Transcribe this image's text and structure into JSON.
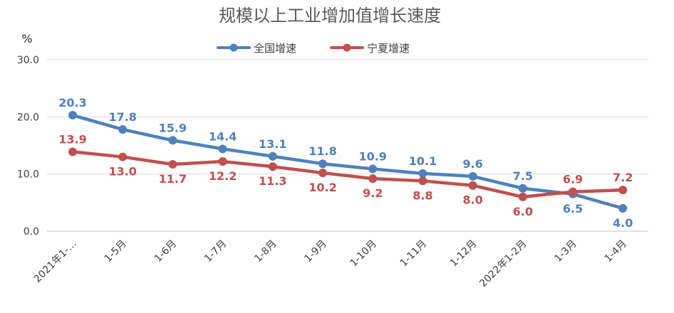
{
  "chart_data": {
    "type": "line",
    "title": "规模以上工业增加值增长速度",
    "unit_label": "%",
    "categories": [
      "2021年1-…",
      "1-5月",
      "1-6月",
      "1-7月",
      "1-8月",
      "1-9月",
      "1-10月",
      "1-11月",
      "1-12月",
      "2022年1-2月",
      "1-3月",
      "1-4月"
    ],
    "y_ticks": [
      "30.0",
      "20.0",
      "10.0",
      "0.0"
    ],
    "ylim": [
      0,
      30
    ],
    "grid": true,
    "legend_position": "top",
    "series": [
      {
        "name": "全国增速",
        "color": "#4E81BD",
        "values": [
          20.3,
          17.8,
          15.9,
          14.4,
          13.1,
          11.8,
          10.9,
          10.1,
          9.6,
          7.5,
          6.5,
          4.0
        ],
        "labels": [
          "20.3",
          "17.8",
          "15.9",
          "14.4",
          "13.1",
          "11.8",
          "10.9",
          "10.1",
          "9.6",
          "7.5",
          "6.5",
          "4.0"
        ],
        "label_side": [
          "above",
          "above",
          "above",
          "above",
          "above",
          "above",
          "above",
          "above",
          "above",
          "above",
          "below",
          "below"
        ]
      },
      {
        "name": "宁夏增速",
        "color": "#C0504D",
        "values": [
          13.9,
          13.0,
          11.7,
          12.2,
          11.3,
          10.2,
          9.2,
          8.8,
          8.0,
          6.0,
          6.9,
          7.2
        ],
        "labels": [
          "13.9",
          "13.0",
          "11.7",
          "12.2",
          "11.3",
          "10.2",
          "9.2",
          "8.8",
          "8.0",
          "6.0",
          "6.9",
          "7.2"
        ],
        "label_side": [
          "above",
          "below",
          "below",
          "below",
          "below",
          "below",
          "below",
          "below",
          "below",
          "below",
          "above",
          "above"
        ]
      }
    ]
  }
}
